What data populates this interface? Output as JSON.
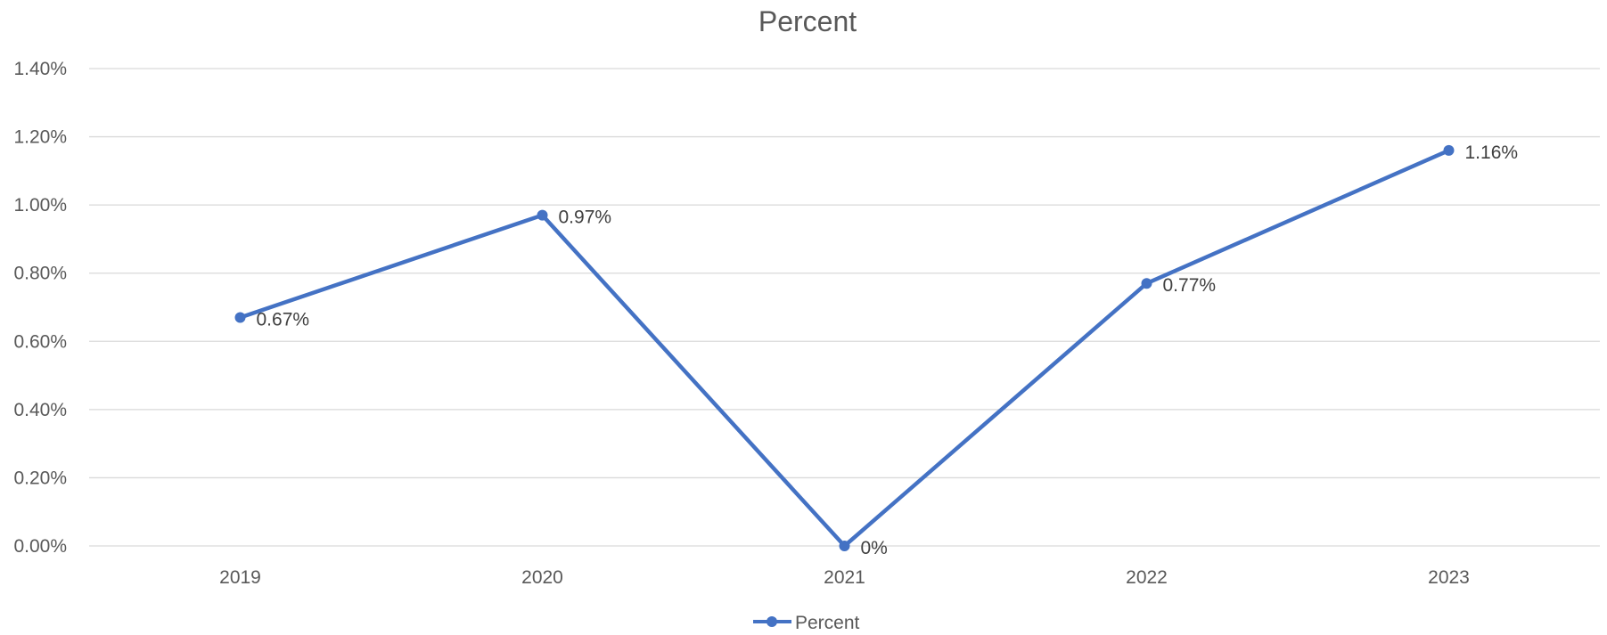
{
  "chart_data": {
    "type": "line",
    "title": "Percent",
    "categories": [
      "2019",
      "2020",
      "2021",
      "2022",
      "2023"
    ],
    "series": [
      {
        "name": "Percent",
        "values": [
          0.67,
          0.97,
          0,
          0.77,
          1.16
        ],
        "labels": [
          "0.67%",
          "0.97%",
          "0%",
          "0.77%",
          "1.16%"
        ],
        "color": "#4472C4"
      }
    ],
    "y_ticks": [
      "0.00%",
      "0.20%",
      "0.40%",
      "0.60%",
      "0.80%",
      "1.00%",
      "1.20%",
      "1.40%"
    ],
    "ylim": [
      0,
      1.4
    ],
    "grid": true,
    "legend": "bottom-center"
  }
}
